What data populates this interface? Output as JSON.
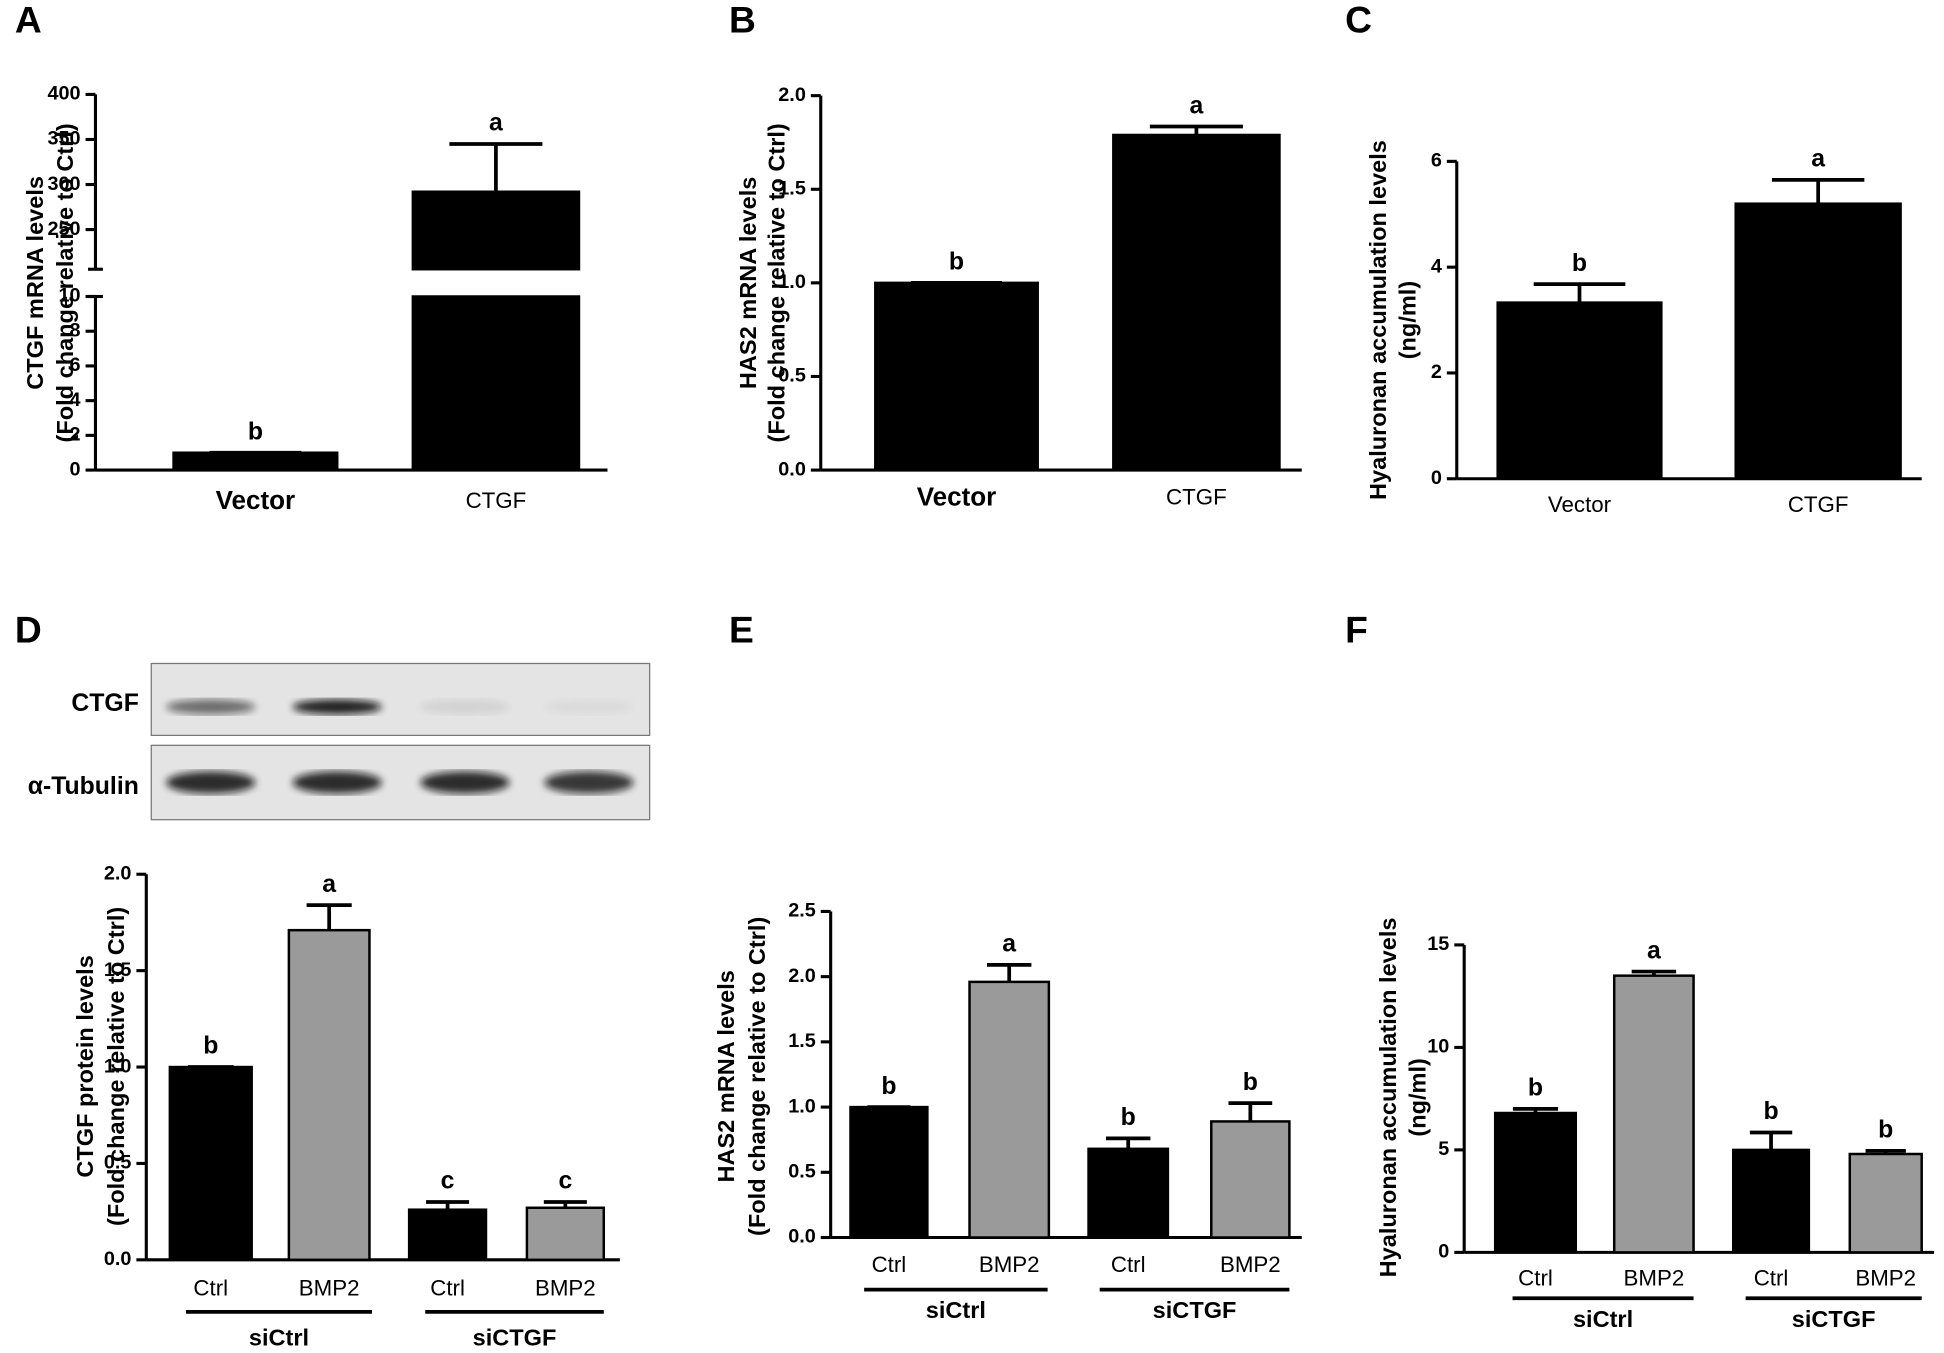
{
  "chart_data": [
    {
      "type": "bar",
      "panel": "A",
      "ylabel": [
        "CTGF mRNA levels",
        "(Fold change relative to Ctrl)"
      ],
      "categories": [
        "Vector",
        "CTGF"
      ],
      "values": [
        1,
        292
      ],
      "errors": [
        0,
        53
      ],
      "letters": [
        "b",
        "a"
      ],
      "colors": [
        "#000000",
        "#000000"
      ],
      "y_segments": [
        {
          "ylim": [
            0,
            10
          ],
          "yticks": [
            0,
            2,
            4,
            6,
            8,
            10
          ]
        },
        {
          "ylim": [
            206,
            400
          ],
          "yticks": [
            250,
            300,
            350,
            400
          ]
        }
      ]
    },
    {
      "type": "bar",
      "panel": "B",
      "ylabel": [
        "HAS2 mRNA levels",
        "(Fold change relative to Ctrl)"
      ],
      "categories": [
        "Vector",
        "CTGF"
      ],
      "values": [
        1.0,
        1.79
      ],
      "errors": [
        0,
        0.045
      ],
      "letters": [
        "b",
        "a"
      ],
      "colors": [
        "#000000",
        "#000000"
      ],
      "ylim": [
        0,
        2
      ],
      "yticks": [
        {
          "value": 0,
          "label": "0.0"
        },
        0.5,
        {
          "value": 1,
          "label": "1.0"
        },
        1.5,
        {
          "value": 2,
          "label": "2.0"
        }
      ]
    },
    {
      "type": "bar",
      "panel": "C",
      "ylabel": [
        "Hyaluronan accumulation levels",
        "(ng/ml)"
      ],
      "categories": [
        "Vector",
        "CTGF"
      ],
      "values": [
        3.33,
        5.2
      ],
      "errors": [
        0.35,
        0.45
      ],
      "letters": [
        "b",
        "a"
      ],
      "colors": [
        "#000000",
        "#000000"
      ],
      "ylim": [
        0,
        6
      ],
      "yticks": [
        0,
        2,
        4,
        6
      ]
    },
    {
      "type": "bar",
      "panel": "D",
      "blot_labels": [
        "CTGF",
        "α-Tubulin"
      ],
      "ylabel": [
        "CTGF protein levels",
        "(Fold change relative to Ctrl)"
      ],
      "categories": [
        "Ctrl",
        "BMP2",
        "Ctrl",
        "BMP2"
      ],
      "groups": [
        "siCtrl",
        "siCTGF"
      ],
      "values": [
        1.0,
        1.71,
        0.26,
        0.27
      ],
      "errors": [
        0,
        0.13,
        0.04,
        0.03
      ],
      "letters": [
        "b",
        "a",
        "c",
        "c"
      ],
      "colors": [
        "#000000",
        "#9a9a9a",
        "#000000",
        "#9a9a9a"
      ],
      "ylim": [
        0,
        2
      ],
      "yticks": [
        {
          "value": 0,
          "label": "0.0"
        },
        0.5,
        {
          "value": 1,
          "label": "1.0"
        },
        1.5,
        {
          "value": 2,
          "label": "2.0"
        }
      ]
    },
    {
      "type": "bar",
      "panel": "E",
      "ylabel": [
        "HAS2 mRNA levels",
        "(Fold change relative to Ctrl)"
      ],
      "categories": [
        "Ctrl",
        "BMP2",
        "Ctrl",
        "BMP2"
      ],
      "groups": [
        "siCtrl",
        "siCTGF"
      ],
      "values": [
        1.0,
        1.96,
        0.68,
        0.89
      ],
      "errors": [
        0,
        0.13,
        0.08,
        0.14
      ],
      "letters": [
        "b",
        "a",
        "b",
        "b"
      ],
      "colors": [
        "#000000",
        "#9a9a9a",
        "#000000",
        "#9a9a9a"
      ],
      "ylim": [
        0,
        2.5
      ],
      "yticks": [
        {
          "value": 0,
          "label": "0.0"
        },
        0.5,
        {
          "value": 1,
          "label": "1.0"
        },
        1.5,
        {
          "value": 2,
          "label": "2.0"
        },
        2.5
      ]
    },
    {
      "type": "bar",
      "panel": "F",
      "ylabel": [
        "Hyaluronan accumulation levels",
        "(ng/ml)"
      ],
      "categories": [
        "Ctrl",
        "BMP2",
        "Ctrl",
        "BMP2"
      ],
      "groups": [
        "siCtrl",
        "siCTGF"
      ],
      "values": [
        6.8,
        13.5,
        5.0,
        4.8
      ],
      "errors": [
        0.2,
        0.2,
        0.85,
        0.15
      ],
      "letters": [
        "b",
        "a",
        "b",
        "b"
      ],
      "colors": [
        "#000000",
        "#9a9a9a",
        "#000000",
        "#9a9a9a"
      ],
      "ylim": [
        0,
        15
      ],
      "yticks": [
        0,
        5,
        10,
        15
      ]
    }
  ]
}
